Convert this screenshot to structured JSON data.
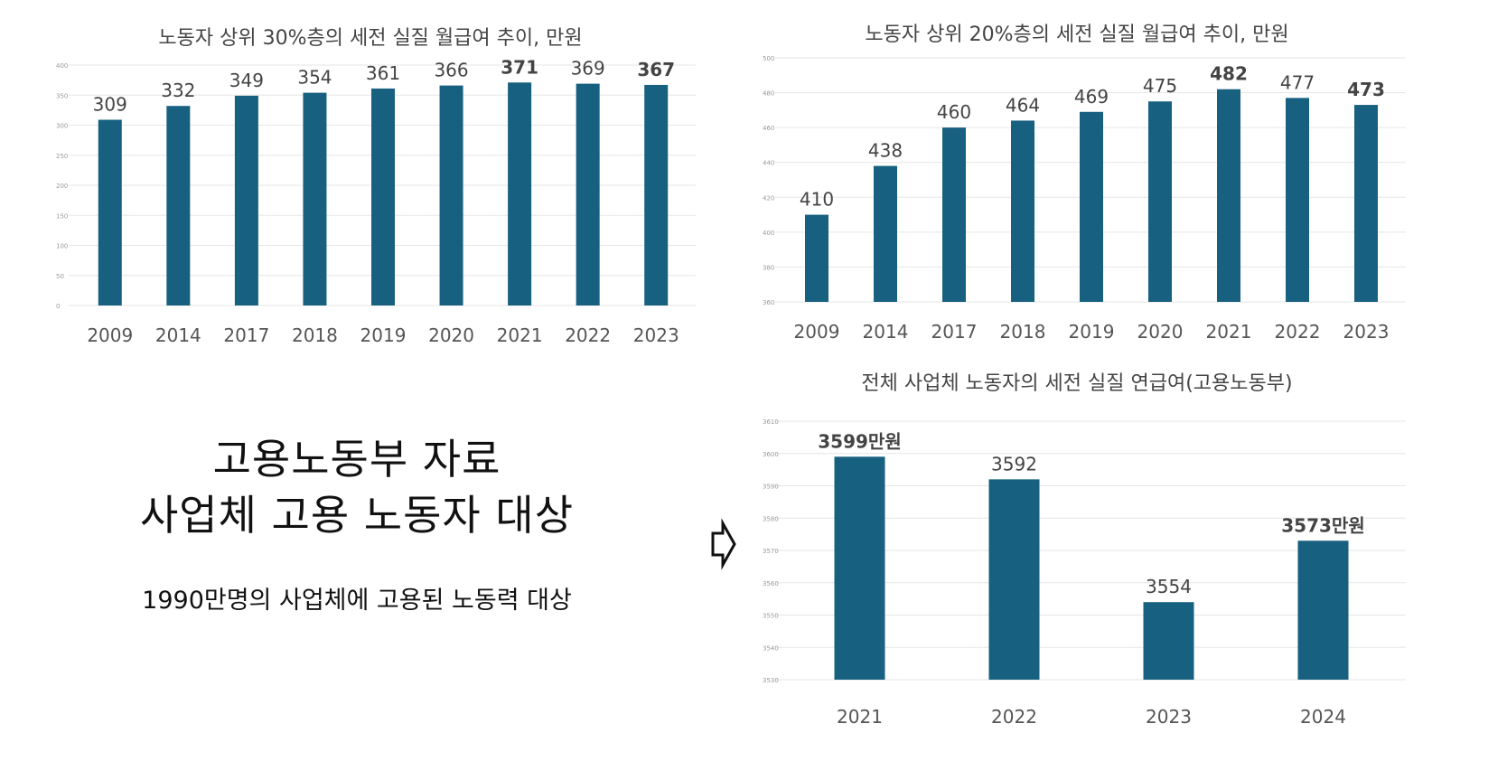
{
  "left_panel": {
    "heading_line1": "고용노동부 자료",
    "heading_line2": "사업체 고용 노동자 대상",
    "subtext": "1990만명의 사업체에 고용된 노동력 대상"
  },
  "arrow_icon": "right-arrow-icon",
  "chart_data": [
    {
      "type": "bar",
      "title": "노동자 상위 30%층의 세전 실질 월급여 추이, 만원",
      "categories": [
        "2009",
        "2014",
        "2017",
        "2018",
        "2019",
        "2020",
        "2021",
        "2022",
        "2023"
      ],
      "values": [
        309,
        332,
        349,
        354,
        361,
        366,
        371,
        369,
        367
      ],
      "ylim": [
        0,
        400
      ],
      "yticks": [
        0,
        50,
        100,
        150,
        200,
        250,
        300,
        350,
        400
      ],
      "grid": true,
      "bar_color": "#17607f",
      "highlights": [
        {
          "category": "2021",
          "color": "#1aa85a"
        },
        {
          "category": "2023",
          "color": "#c8102e"
        }
      ]
    },
    {
      "type": "bar",
      "title": "노동자 상위 20%층의 세전 실질 월급여 추이, 만원",
      "categories": [
        "2009",
        "2014",
        "2017",
        "2018",
        "2019",
        "2020",
        "2021",
        "2022",
        "2023"
      ],
      "values": [
        410,
        438,
        460,
        464,
        469,
        475,
        482,
        477,
        473
      ],
      "ylim": [
        360,
        500
      ],
      "yticks": [
        360,
        380,
        400,
        420,
        440,
        460,
        480,
        500
      ],
      "grid": true,
      "bar_color": "#17607f",
      "highlights": [
        {
          "category": "2021",
          "color": "#1ea3d6"
        },
        {
          "category": "2023",
          "color": "#c8102e"
        }
      ]
    },
    {
      "type": "bar",
      "title": "전체 사업체 노동자의 세전 실질 연급여(고용노동부)",
      "categories": [
        "2021",
        "2022",
        "2023",
        "2024"
      ],
      "values": [
        3599,
        3592,
        3554,
        3573
      ],
      "data_labels": [
        "3599만원",
        "3592",
        "3554",
        "3573만원"
      ],
      "ylim": [
        3530,
        3610
      ],
      "yticks": [
        3530,
        3540,
        3550,
        3560,
        3570,
        3580,
        3590,
        3600,
        3610
      ],
      "grid": true,
      "bar_color": "#17607f",
      "highlights": [
        {
          "category": "2021",
          "color": "#1ea3d6"
        },
        {
          "category": "2024",
          "color": "#c8102e"
        }
      ]
    }
  ]
}
